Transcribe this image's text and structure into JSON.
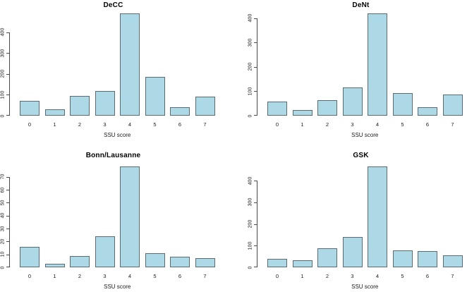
{
  "figure": {
    "background": "#ffffff",
    "layout": "2x2 grid of base-R style barplots",
    "shared_xlabel": "SSU score"
  },
  "colors": {
    "bar_fill": "#ADD8E6",
    "bar_border": "#5a6b74",
    "axis": "#4a4a4a",
    "text": "#1a1a1a"
  },
  "chart_data": [
    {
      "type": "bar",
      "title": "DeCC",
      "xlabel": "SSU score",
      "ylabel": "",
      "categories": [
        "0",
        "1",
        "2",
        "3",
        "4",
        "5",
        "6",
        "7"
      ],
      "values": [
        71,
        32,
        95,
        120,
        490,
        186,
        41,
        90
      ],
      "yticks": [
        0,
        100,
        200,
        300,
        400
      ],
      "ylim": [
        0,
        490
      ],
      "grid": false,
      "legend": false
    },
    {
      "type": "bar",
      "title": "DeNt",
      "xlabel": "SSU score",
      "ylabel": "",
      "categories": [
        "0",
        "1",
        "2",
        "3",
        "4",
        "5",
        "6",
        "7"
      ],
      "values": [
        59,
        22,
        64,
        115,
        420,
        93,
        36,
        88
      ],
      "yticks": [
        0,
        100,
        200,
        300,
        400
      ],
      "ylim": [
        0,
        420
      ],
      "grid": false,
      "legend": false
    },
    {
      "type": "bar",
      "title": "Bonn/Lausanne",
      "xlabel": "SSU score",
      "ylabel": "",
      "categories": [
        "0",
        "1",
        "2",
        "3",
        "4",
        "5",
        "6",
        "7"
      ],
      "values": [
        16,
        3,
        9,
        24,
        78,
        11,
        8,
        7
      ],
      "yticks": [
        0,
        10,
        20,
        30,
        40,
        50,
        60,
        70
      ],
      "ylim": [
        0,
        78
      ],
      "grid": false,
      "legend": false
    },
    {
      "type": "bar",
      "title": "GSK",
      "xlabel": "SSU score",
      "ylabel": "",
      "categories": [
        "0",
        "1",
        "2",
        "3",
        "4",
        "5",
        "6",
        "7"
      ],
      "values": [
        39,
        33,
        88,
        139,
        465,
        77,
        76,
        54
      ],
      "yticks": [
        0,
        100,
        200,
        300,
        400
      ],
      "ylim": [
        0,
        465
      ],
      "grid": false,
      "legend": false
    }
  ]
}
